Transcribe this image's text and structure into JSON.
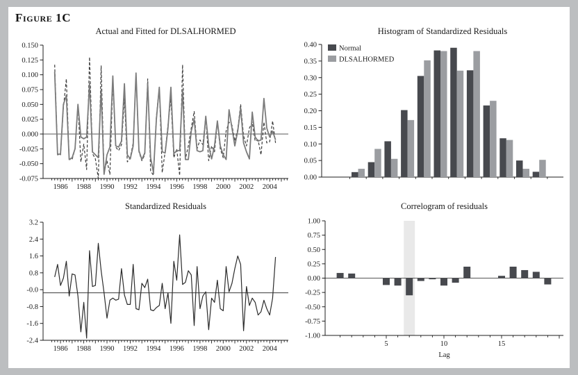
{
  "figure": {
    "title": "Figure 1C"
  },
  "colors": {
    "page_bg": "#bcbec0",
    "panel_bg": "#ffffff",
    "axis": "#1c1c1c",
    "text": "#1c1c1c",
    "actual_line": "#3c3c3c",
    "fitted_line": "#7b7b7b",
    "residual_line": "#2b2b2b",
    "normal_bar": "#47494e",
    "dlsalhormed_bar": "#9b9da1",
    "correlogram_bar": "#47494e",
    "highlight_band": "#e9e9e9"
  },
  "chart_data": [
    {
      "id": "actual-fitted",
      "type": "line",
      "title": "Actual and Fitted for DLSALHORMED",
      "x_start": 1985.5,
      "x_step": 0.25,
      "xlim": [
        1984.5,
        2005.6
      ],
      "ylim": [
        -0.075,
        0.15
      ],
      "yticks": [
        "0.150",
        "0.125",
        "0.100",
        "0.075",
        "0.050",
        "0.025",
        "0.000",
        "-0.025",
        "-0.050",
        "-0.075"
      ],
      "xtick_years": [
        1986,
        1988,
        1990,
        1992,
        1994,
        1996,
        1998,
        2000,
        2002,
        2004
      ],
      "x_minor_step": 0.25,
      "zero_line": 0,
      "grid": false,
      "series": [
        {
          "name": "Actual",
          "line": "dashed",
          "color": "#3c3c3c",
          "values": [
            0.117,
            -0.033,
            -0.035,
            0.045,
            0.093,
            -0.043,
            -0.043,
            -0.025,
            0.05,
            -0.047,
            -0.017,
            -0.06,
            0.13,
            -0.033,
            -0.042,
            -0.075,
            0.115,
            -0.065,
            -0.045,
            -0.068,
            0.09,
            -0.022,
            -0.028,
            -0.018,
            0.06,
            -0.047,
            -0.04,
            -0.015,
            0.1,
            -0.03,
            -0.045,
            -0.035,
            0.093,
            -0.062,
            -0.07,
            0.03,
            0.079,
            -0.065,
            -0.03,
            0.015,
            0.06,
            -0.04,
            -0.025,
            -0.07,
            0.117,
            -0.042,
            -0.02,
            0.01,
            0.038,
            -0.025,
            -0.01,
            -0.018,
            0.03,
            -0.045,
            -0.02,
            -0.03,
            0.02,
            -0.025,
            -0.04,
            0.005,
            0.02,
            0.015,
            -0.012,
            0.008,
            0.05,
            -0.003,
            -0.02,
            0.01,
            0.02,
            -0.012,
            -0.01,
            -0.035,
            0.02,
            -0.015,
            -0.013,
            0.022,
            -0.015
          ]
        },
        {
          "name": "Fitted",
          "line": "solid",
          "color": "#7b7b7b",
          "values": [
            0.105,
            -0.035,
            -0.033,
            0.05,
            0.065,
            -0.043,
            -0.04,
            -0.025,
            0.05,
            -0.005,
            -0.008,
            -0.005,
            0.085,
            -0.03,
            -0.035,
            -0.04,
            0.075,
            -0.068,
            -0.035,
            -0.022,
            0.098,
            -0.02,
            -0.022,
            -0.012,
            0.085,
            -0.035,
            -0.042,
            -0.02,
            0.103,
            -0.028,
            -0.043,
            -0.032,
            0.085,
            -0.04,
            -0.065,
            0.025,
            0.079,
            -0.03,
            -0.032,
            0.01,
            0.079,
            -0.033,
            -0.028,
            -0.028,
            0.075,
            -0.043,
            -0.043,
            0.005,
            0.025,
            -0.028,
            -0.03,
            -0.028,
            0.03,
            -0.02,
            -0.042,
            -0.02,
            0.022,
            -0.02,
            -0.035,
            -0.043,
            0.041,
            0.01,
            -0.02,
            0.005,
            0.044,
            -0.015,
            -0.03,
            -0.042,
            0.037,
            -0.005,
            -0.012,
            -0.01,
            0.06,
            0.01,
            -0.005,
            0.005,
            -0.01
          ]
        }
      ]
    },
    {
      "id": "histogram",
      "type": "bar",
      "title": "Histogram of Standardized Residuals",
      "ylim": [
        0,
        0.4
      ],
      "yticks": [
        "0.40",
        "0.35",
        "0.30",
        "0.25",
        "0.20",
        "0.15",
        "0.10",
        "0.05",
        "0.00"
      ],
      "legend_position": "top-left",
      "series": [
        {
          "name": "Normal",
          "color": "#47494e",
          "values": [
            0.015,
            0.045,
            0.108,
            0.202,
            0.305,
            0.382,
            0.39,
            0.322,
            0.216,
            0.117,
            0.05,
            0.016
          ]
        },
        {
          "name": "DLSALHORMED",
          "color": "#9b9da1",
          "values": [
            0.025,
            0.085,
            0.055,
            0.172,
            0.352,
            0.38,
            0.321,
            0.38,
            0.23,
            0.112,
            0.025,
            0.052
          ]
        }
      ]
    },
    {
      "id": "residuals",
      "type": "line",
      "title": "Standardized Residuals",
      "x_start": 1985.5,
      "x_step": 0.25,
      "xlim": [
        1984.5,
        2005.6
      ],
      "ylim": [
        -2.4,
        3.2
      ],
      "yticks": [
        "3.2",
        "2.4",
        "1.6",
        "0.8",
        "-0.0",
        "-0.8",
        "-1.6",
        "-2.4"
      ],
      "xtick_years": [
        1986,
        1988,
        1990,
        1992,
        1994,
        1996,
        1998,
        2000,
        2002,
        2004
      ],
      "x_minor_step": 0.25,
      "zero_line": -0.15,
      "grid": false,
      "series": [
        {
          "name": "Standardized residual",
          "line": "solid",
          "color": "#2b2b2b",
          "values": [
            0.6,
            1.2,
            0.2,
            0.55,
            1.35,
            -0.3,
            0.75,
            0.7,
            -0.3,
            -2.0,
            -0.6,
            -2.3,
            1.85,
            0.15,
            0.2,
            2.2,
            0.9,
            -0.15,
            -1.35,
            -0.5,
            -0.4,
            -0.5,
            -0.45,
            1.0,
            -0.25,
            -0.7,
            -0.7,
            1.2,
            -0.9,
            -0.95,
            0.3,
            0.1,
            0.5,
            -0.95,
            -1.0,
            -0.85,
            -0.75,
            0.3,
            -0.9,
            -0.15,
            -1.6,
            1.35,
            0.45,
            2.6,
            0.25,
            0.35,
            0.9,
            0.7,
            -1.7,
            1.1,
            -0.9,
            -0.3,
            -0.1,
            -1.9,
            -0.4,
            -0.6,
            0.45,
            -0.9,
            -1.0,
            1.1,
            -0.1,
            0.3,
            1.0,
            1.6,
            1.2,
            -1.95,
            0.15,
            -0.75,
            -0.4,
            -0.6,
            -1.2,
            -1.05,
            -0.5,
            -0.9,
            -1.2,
            -0.4,
            1.55
          ]
        }
      ]
    },
    {
      "id": "correlogram",
      "type": "bar",
      "title": "Correlogram of residuals",
      "xlabel": "Lag",
      "ylim": [
        -1.0,
        1.0
      ],
      "yticks": [
        "1.00",
        "0.75",
        "0.50",
        "0.25",
        "0.00",
        "-0.25",
        "-0.50",
        "-0.75",
        "-1.00"
      ],
      "xticks": [
        5,
        10,
        15
      ],
      "lags": [
        1,
        2,
        3,
        4,
        5,
        6,
        7,
        8,
        9,
        10,
        11,
        12,
        13,
        14,
        15,
        16,
        17,
        18,
        19
      ],
      "values": [
        0.09,
        0.08,
        0,
        0,
        -0.12,
        -0.13,
        -0.3,
        -0.05,
        -0.02,
        -0.13,
        -0.08,
        0.2,
        0,
        0,
        0.04,
        0.2,
        0.14,
        0.11,
        -0.11
      ],
      "highlight_lag": 7,
      "bar_color": "#47494e",
      "highlight_color": "#e9e9e9"
    }
  ]
}
